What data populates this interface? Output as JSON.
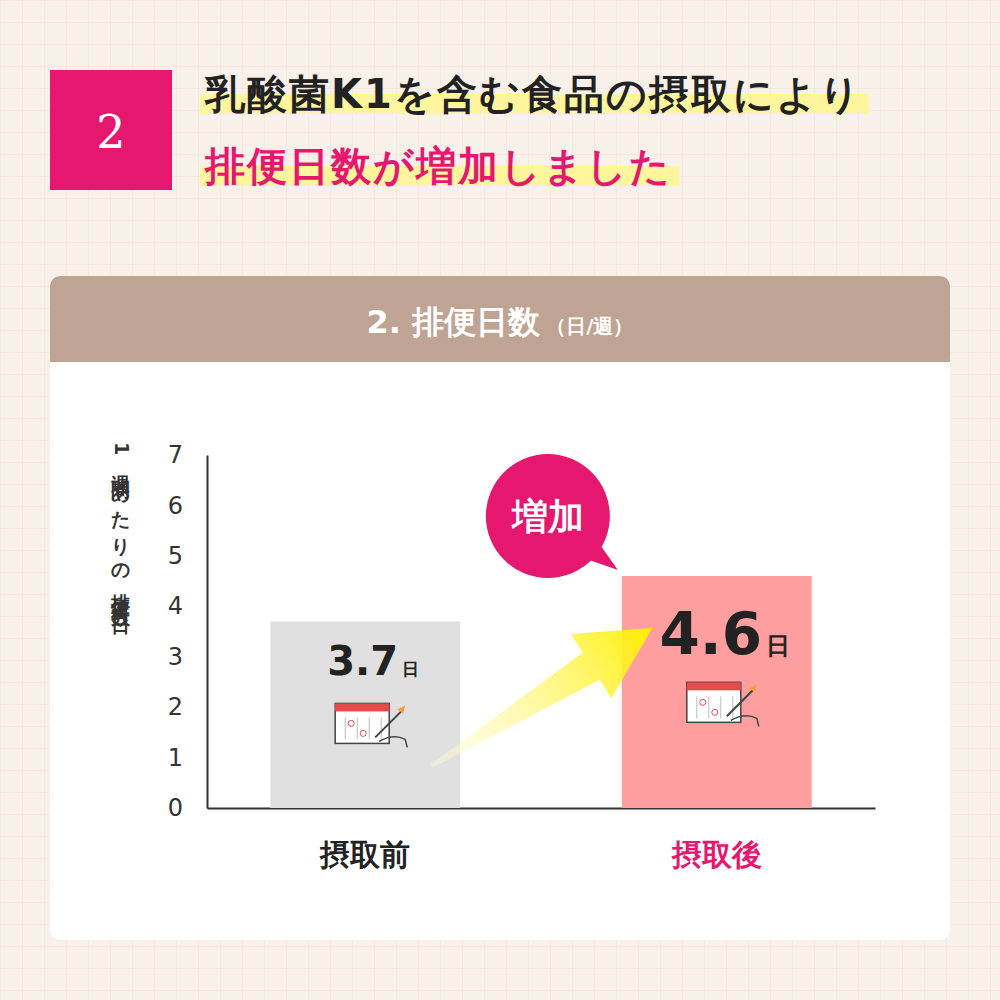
{
  "header": {
    "badge": "2",
    "lines": [
      "乳酸菌K1を含む食品の摂取により",
      "排便日数が増加しました"
    ]
  },
  "chart_data": {
    "type": "bar",
    "title": "2. 排便日数",
    "subtitle": "（日/週）",
    "y_label": "1週間あたりの排便日数（日）",
    "categories": [
      "摂取前",
      "摂取後"
    ],
    "values": [
      3.7,
      4.6
    ],
    "value_labels": [
      "3.7日",
      "4.6日"
    ],
    "colors": [
      "#e0e0e0",
      "#ff9e9e"
    ],
    "ylim": [
      0,
      7
    ],
    "yticks": [
      0,
      1,
      2,
      3,
      4,
      5,
      6,
      7
    ],
    "grid": false,
    "data_labels": true,
    "annotation": "増加"
  }
}
